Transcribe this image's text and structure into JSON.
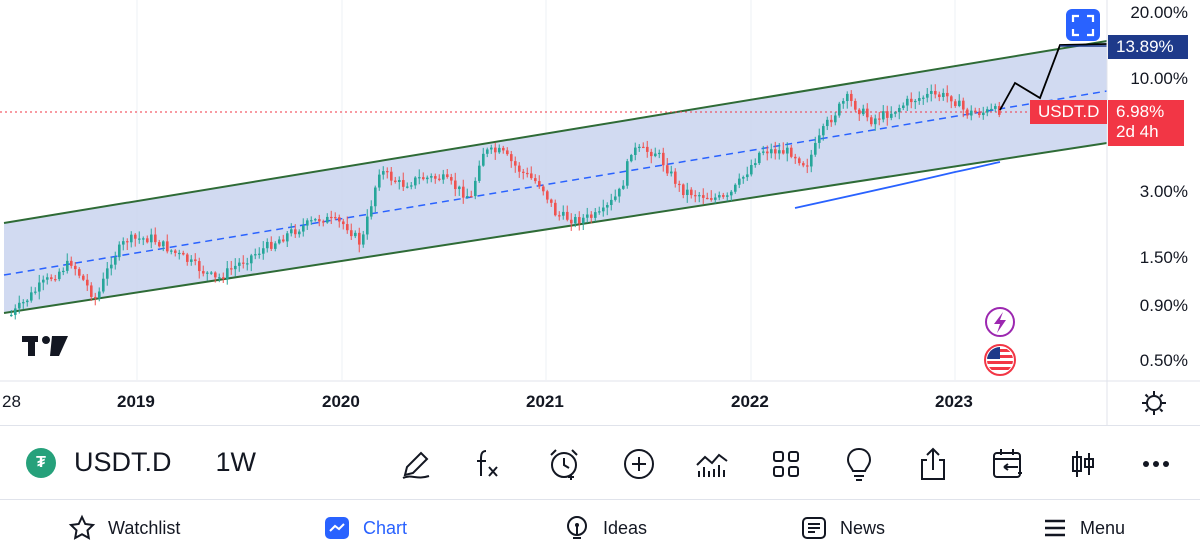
{
  "chart": {
    "symbol": "USDT.D",
    "price_axis": [
      "20.00%",
      "10.00%",
      "3.00%",
      "1.50%",
      "0.90%",
      "0.50%"
    ],
    "target_badge": "13.89%",
    "current_badge_symbol": "USDT.D",
    "current_badge_value": "6.98%",
    "current_badge_countdown": "2d 4h",
    "time_axis": [
      "28",
      "2019",
      "2020",
      "2021",
      "2022",
      "2023"
    ],
    "colors": {
      "bull": "#26a69a",
      "bear": "#ef5350",
      "channel_fill": "#c9d3ee",
      "channel_line": "#2e6b36",
      "midline": "#2962ff",
      "target_badge": "#1e3a8a",
      "current_badge": "#f23645"
    }
  },
  "toolbar": {
    "symbol": "USDT.D",
    "interval": "1W",
    "tools": [
      "draw-icon",
      "indicators-fx-icon",
      "alert-clock-icon",
      "add-circle-icon",
      "compare-chart-icon",
      "layouts-grid-icon",
      "ideas-bulb-icon",
      "share-icon",
      "replay-calendar-icon",
      "chart-type-candle-icon",
      "more-icon"
    ]
  },
  "nav": {
    "watchlist": "Watchlist",
    "chart": "Chart",
    "ideas": "Ideas",
    "news": "News",
    "menu": "Menu"
  }
}
